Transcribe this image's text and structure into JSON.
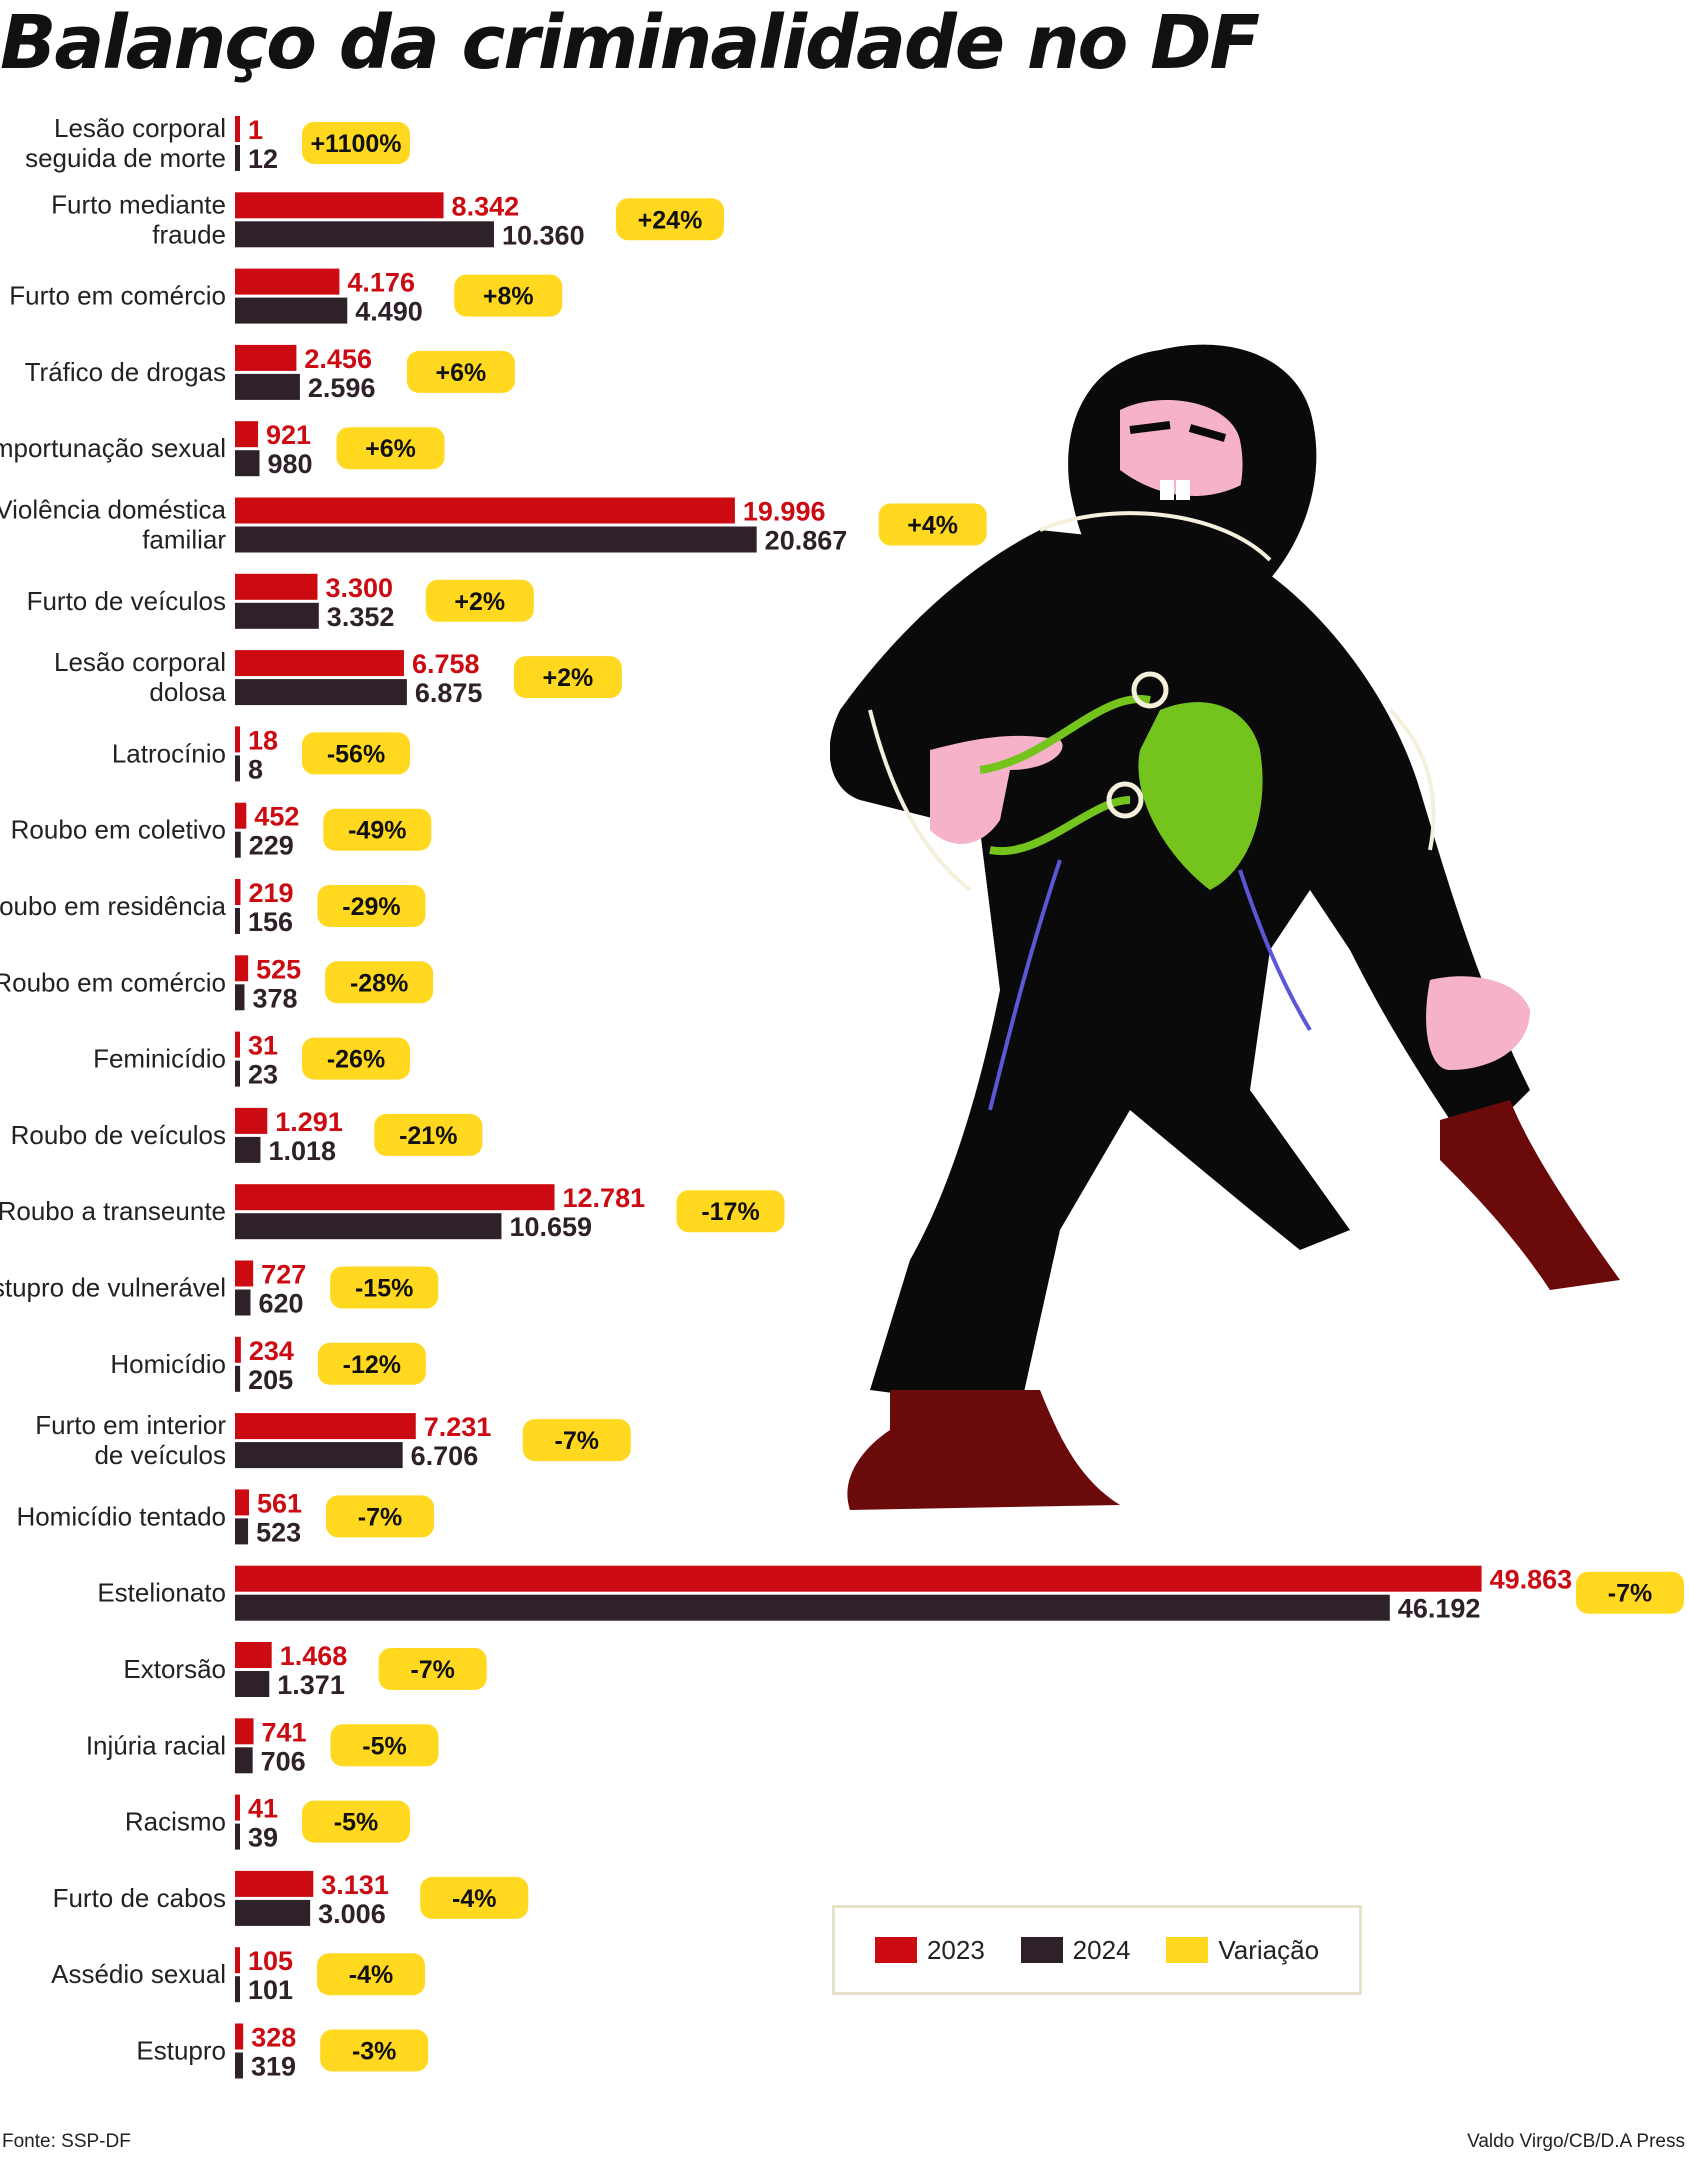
{
  "title": "Balanço da criminalidade no DF",
  "source": "Fonte: SSP-DF",
  "credit": "Valdo Virgo/CB/D.A Press",
  "colors": {
    "y2023": "#cc0a12",
    "y2024": "#2e2129",
    "variation": "#ffd81f"
  },
  "chart_data": {
    "type": "bar",
    "orientation": "horizontal",
    "title": "Balanço da criminalidade no DF",
    "categories": [
      "Lesão corporal\nseguida de morte",
      "Furto mediante\nfraude",
      "Furto em comércio",
      "Tráfico de drogas",
      "Importunação sexual",
      "Violência doméstica\nfamiliar",
      "Furto de veículos",
      "Lesão corporal\ndolosa",
      "Latrocínio",
      "Roubo em coletivo",
      "Roubo em residência",
      "Roubo em comércio",
      "Feminicídio",
      "Roubo de veículos",
      "Roubo a transeunte",
      "Estupro de vulnerável",
      "Homicídio",
      "Furto em interior\nde veículos",
      "Homicídio tentado",
      "Estelionato",
      "Extorsão",
      "Injúria racial",
      "Racismo",
      "Furto de cabos",
      "Assédio sexual",
      "Estupro"
    ],
    "series": [
      {
        "name": "2023",
        "values": [
          1,
          8342,
          4176,
          2456,
          921,
          19996,
          3300,
          6758,
          18,
          452,
          219,
          525,
          31,
          1291,
          12781,
          727,
          234,
          7231,
          561,
          49863,
          1468,
          741,
          41,
          3131,
          105,
          328
        ],
        "labels": [
          "1",
          "8.342",
          "4.176",
          "2.456",
          "921",
          "19.996",
          "3.300",
          "6.758",
          "18",
          "452",
          "219",
          "525",
          "31",
          "1.291",
          "12.781",
          "727",
          "234",
          "7.231",
          "561",
          "49.863",
          "1.468",
          "741",
          "41",
          "3.131",
          "105",
          "328"
        ]
      },
      {
        "name": "2024",
        "values": [
          12,
          10360,
          4490,
          2596,
          980,
          20867,
          3352,
          6875,
          8,
          229,
          156,
          378,
          23,
          1018,
          10659,
          620,
          205,
          6706,
          523,
          46192,
          1371,
          706,
          39,
          3006,
          101,
          319
        ],
        "labels": [
          "12",
          "10.360",
          "4.490",
          "2.596",
          "980",
          "20.867",
          "3.352",
          "6.875",
          "8",
          "229",
          "156",
          "378",
          "23",
          "1.018",
          "10.659",
          "620",
          "205",
          "6.706",
          "523",
          "46.192",
          "1.371",
          "706",
          "39",
          "3.006",
          "101",
          "319"
        ]
      }
    ],
    "variation": [
      "+1100%",
      "+24%",
      "+8%",
      "+6%",
      "+6%",
      "+4%",
      "+2%",
      "+2%",
      "-56%",
      "-49%",
      "-29%",
      "-28%",
      "-26%",
      "-21%",
      "-17%",
      "-15%",
      "-12%",
      "-7%",
      "-7%",
      "-7%",
      "-7%",
      "-5%",
      "-5%",
      "-4%",
      "-4%",
      "-3%"
    ],
    "legend": {
      "placement": "bottom-right",
      "items": [
        "2023",
        "2024",
        "Variação"
      ]
    },
    "grid": false
  }
}
